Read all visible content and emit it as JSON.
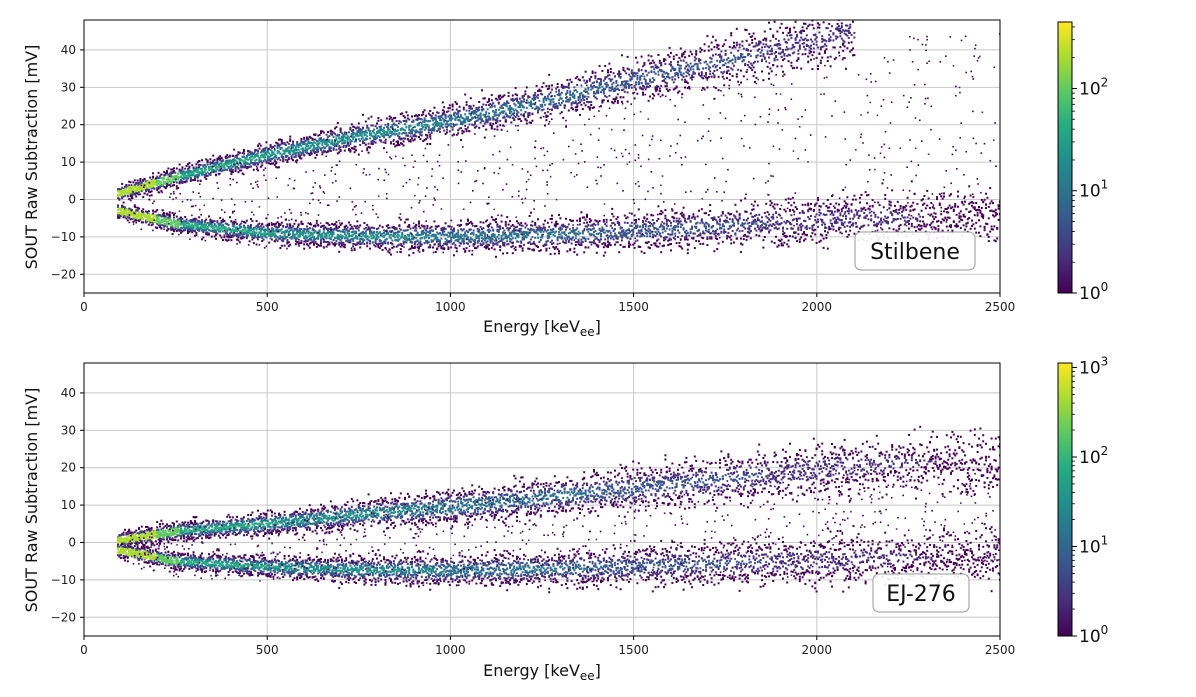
{
  "chart_data": [
    {
      "type": "heatmap",
      "label": "Stilbene",
      "xlabel_main": "Energy [keV",
      "xlabel_sub": "ee",
      "xlabel_close": "]",
      "ylabel": "SOUT Raw Subtraction [mV]",
      "xlim": [
        0,
        2500
      ],
      "ylim": [
        -25,
        48
      ],
      "xticks": [
        "0",
        "500",
        "1000",
        "1500",
        "2000",
        "2500"
      ],
      "xtick_values": [
        0,
        500,
        1000,
        1500,
        2000,
        2500
      ],
      "yticks": [
        "−20",
        "−10",
        "0",
        "10",
        "20",
        "30",
        "40"
      ],
      "ytick_values": [
        -20,
        -10,
        0,
        10,
        20,
        30,
        40
      ],
      "grid": true,
      "bands": [
        {
          "name": "upper band",
          "x": [
            90,
            250,
            500,
            750,
            1000,
            1250,
            1500,
            1750,
            2000,
            2100
          ],
          "y": [
            1.5,
            6,
            12,
            17,
            21,
            26,
            32,
            37,
            43,
            45
          ]
        },
        {
          "name": "lower band",
          "x": [
            90,
            250,
            500,
            750,
            1000,
            1250,
            1500,
            1750,
            2000,
            2500
          ],
          "y": [
            -3,
            -6.5,
            -9,
            -9.8,
            -10,
            -9.5,
            -8.5,
            -7,
            -5.5,
            -4
          ]
        }
      ],
      "colorbar": {
        "scale": "log",
        "ticks": [
          {
            "base": "10",
            "exp": "0"
          },
          {
            "base": "10",
            "exp": "1"
          },
          {
            "base": "10",
            "exp": "2"
          }
        ],
        "max_exp": 2.65,
        "colormap": "viridis"
      }
    },
    {
      "type": "heatmap",
      "label": "EJ-276",
      "xlabel_main": "Energy [keV",
      "xlabel_sub": "ee",
      "xlabel_close": "]",
      "ylabel": "SOUT Raw Subtraction [mV]",
      "xlim": [
        0,
        2500
      ],
      "ylim": [
        -25,
        48
      ],
      "xticks": [
        "0",
        "500",
        "1000",
        "1500",
        "2000",
        "2500"
      ],
      "xtick_values": [
        0,
        500,
        1000,
        1500,
        2000,
        2500
      ],
      "yticks": [
        "−20",
        "−10",
        "0",
        "10",
        "20",
        "30",
        "40"
      ],
      "ytick_values": [
        -20,
        -10,
        0,
        10,
        20,
        30,
        40
      ],
      "grid": true,
      "bands": [
        {
          "name": "upper band",
          "x": [
            90,
            250,
            500,
            750,
            1000,
            1250,
            1500,
            1750,
            2000,
            2250,
            2500
          ],
          "y": [
            0.5,
            3,
            5,
            7.5,
            9.5,
            12,
            14.5,
            17,
            19.5,
            21.5,
            22
          ]
        },
        {
          "name": "lower band",
          "x": [
            90,
            250,
            500,
            750,
            1000,
            1250,
            1500,
            1750,
            2000,
            2250,
            2500
          ],
          "y": [
            -2,
            -5,
            -6.5,
            -7.3,
            -7.5,
            -7,
            -6.5,
            -5.5,
            -4.8,
            -4.2,
            -3.5
          ]
        }
      ],
      "colorbar": {
        "scale": "log",
        "ticks": [
          {
            "base": "10",
            "exp": "0"
          },
          {
            "base": "10",
            "exp": "1"
          },
          {
            "base": "10",
            "exp": "2"
          },
          {
            "base": "10",
            "exp": "3"
          }
        ],
        "max_exp": 3.05,
        "colormap": "viridis"
      }
    }
  ]
}
